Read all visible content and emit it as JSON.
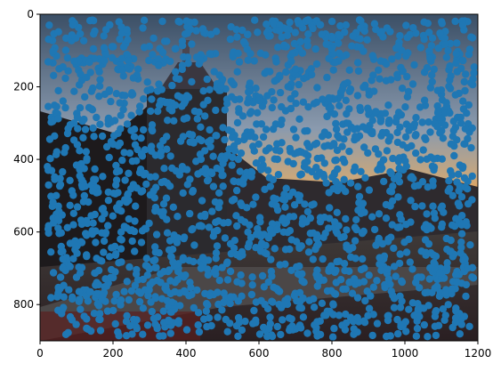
{
  "chart_data": {
    "type": "scatter",
    "title": "",
    "xlabel": "",
    "ylabel": "",
    "xlim": [
      0,
      1200
    ],
    "ylim": [
      900,
      0
    ],
    "y_axis_inverted": true,
    "grid": false,
    "legend": "none",
    "background": "photograph of a tower and buildings at sunset (image shown under the points)",
    "marker": "filled circle",
    "series": [
      {
        "color": "#1f77b4",
        "description": "dense field of points scattered across the whole image area",
        "point_count_estimate": 2000,
        "x_range": [
          20,
          1190
        ],
        "y_range": [
          15,
          890
        ]
      }
    ],
    "x_ticks": [
      "0",
      "200",
      "400",
      "600",
      "800",
      "1000",
      "1200"
    ],
    "y_ticks": [
      "0",
      "200",
      "400",
      "600",
      "800"
    ]
  }
}
